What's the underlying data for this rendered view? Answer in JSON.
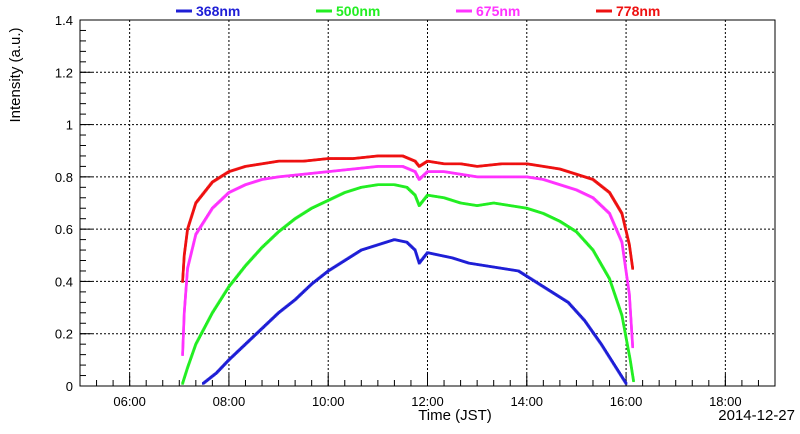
{
  "chart_data": {
    "type": "scatter",
    "title": "",
    "xlabel": "Time (JST)",
    "ylabel": "Intensity (a.u.)",
    "date_label": "2014-12-27",
    "xlim": [
      "05:00",
      "19:00"
    ],
    "ylim": [
      0,
      1.4
    ],
    "x_ticks": [
      "06:00",
      "08:00",
      "10:00",
      "12:00",
      "14:00",
      "16:00",
      "18:00"
    ],
    "y_ticks": [
      "0",
      "0.2",
      "0.4",
      "0.6",
      "0.8",
      "1",
      "1.2",
      "1.4"
    ],
    "grid": true,
    "legend_position": "top",
    "series": [
      {
        "name": "368nm",
        "color": "#1f1fd6",
        "points": [
          [
            "07:29",
            0.01
          ],
          [
            "07:45",
            0.05
          ],
          [
            "08:00",
            0.1
          ],
          [
            "08:20",
            0.16
          ],
          [
            "08:40",
            0.22
          ],
          [
            "09:00",
            0.28
          ],
          [
            "09:20",
            0.33
          ],
          [
            "09:40",
            0.39
          ],
          [
            "10:00",
            0.44
          ],
          [
            "10:20",
            0.48
          ],
          [
            "10:40",
            0.52
          ],
          [
            "11:00",
            0.54
          ],
          [
            "11:20",
            0.56
          ],
          [
            "11:35",
            0.55
          ],
          [
            "11:45",
            0.52
          ],
          [
            "11:50",
            0.47
          ],
          [
            "12:00",
            0.51
          ],
          [
            "12:15",
            0.5
          ],
          [
            "12:30",
            0.49
          ],
          [
            "12:50",
            0.47
          ],
          [
            "13:10",
            0.46
          ],
          [
            "13:30",
            0.45
          ],
          [
            "13:50",
            0.44
          ],
          [
            "14:10",
            0.4
          ],
          [
            "14:30",
            0.36
          ],
          [
            "14:50",
            0.32
          ],
          [
            "15:10",
            0.25
          ],
          [
            "15:30",
            0.16
          ],
          [
            "15:50",
            0.06
          ],
          [
            "16:00",
            0.01
          ]
        ]
      },
      {
        "name": "500nm",
        "color": "#22ee22",
        "points": [
          [
            "07:04",
            0.01
          ],
          [
            "07:10",
            0.07
          ],
          [
            "07:20",
            0.16
          ],
          [
            "07:40",
            0.28
          ],
          [
            "08:00",
            0.38
          ],
          [
            "08:20",
            0.46
          ],
          [
            "08:40",
            0.53
          ],
          [
            "09:00",
            0.59
          ],
          [
            "09:20",
            0.64
          ],
          [
            "09:40",
            0.68
          ],
          [
            "10:00",
            0.71
          ],
          [
            "10:20",
            0.74
          ],
          [
            "10:40",
            0.76
          ],
          [
            "11:00",
            0.77
          ],
          [
            "11:20",
            0.77
          ],
          [
            "11:35",
            0.76
          ],
          [
            "11:45",
            0.73
          ],
          [
            "11:50",
            0.69
          ],
          [
            "12:00",
            0.73
          ],
          [
            "12:20",
            0.72
          ],
          [
            "12:40",
            0.7
          ],
          [
            "13:00",
            0.69
          ],
          [
            "13:20",
            0.7
          ],
          [
            "13:40",
            0.69
          ],
          [
            "14:00",
            0.68
          ],
          [
            "14:20",
            0.66
          ],
          [
            "14:40",
            0.63
          ],
          [
            "15:00",
            0.59
          ],
          [
            "15:20",
            0.52
          ],
          [
            "15:40",
            0.41
          ],
          [
            "15:55",
            0.27
          ],
          [
            "16:05",
            0.1
          ],
          [
            "16:09",
            0.02
          ]
        ]
      },
      {
        "name": "675nm",
        "color": "#ff33ff",
        "points": [
          [
            "07:04",
            0.12
          ],
          [
            "07:06",
            0.28
          ],
          [
            "07:10",
            0.45
          ],
          [
            "07:20",
            0.58
          ],
          [
            "07:40",
            0.68
          ],
          [
            "08:00",
            0.74
          ],
          [
            "08:20",
            0.77
          ],
          [
            "08:40",
            0.79
          ],
          [
            "09:00",
            0.8
          ],
          [
            "09:30",
            0.81
          ],
          [
            "10:00",
            0.82
          ],
          [
            "10:30",
            0.83
          ],
          [
            "11:00",
            0.84
          ],
          [
            "11:30",
            0.84
          ],
          [
            "11:45",
            0.82
          ],
          [
            "11:50",
            0.79
          ],
          [
            "12:00",
            0.82
          ],
          [
            "12:20",
            0.82
          ],
          [
            "12:40",
            0.81
          ],
          [
            "13:00",
            0.8
          ],
          [
            "13:30",
            0.8
          ],
          [
            "14:00",
            0.8
          ],
          [
            "14:20",
            0.79
          ],
          [
            "14:40",
            0.77
          ],
          [
            "15:00",
            0.75
          ],
          [
            "15:20",
            0.72
          ],
          [
            "15:40",
            0.66
          ],
          [
            "15:55",
            0.55
          ],
          [
            "16:04",
            0.35
          ],
          [
            "16:08",
            0.15
          ]
        ]
      },
      {
        "name": "778nm",
        "color": "#ee1111",
        "points": [
          [
            "07:04",
            0.4
          ],
          [
            "07:06",
            0.5
          ],
          [
            "07:10",
            0.6
          ],
          [
            "07:20",
            0.7
          ],
          [
            "07:40",
            0.78
          ],
          [
            "08:00",
            0.82
          ],
          [
            "08:20",
            0.84
          ],
          [
            "08:40",
            0.85
          ],
          [
            "09:00",
            0.86
          ],
          [
            "09:30",
            0.86
          ],
          [
            "10:00",
            0.87
          ],
          [
            "10:30",
            0.87
          ],
          [
            "11:00",
            0.88
          ],
          [
            "11:30",
            0.88
          ],
          [
            "11:45",
            0.86
          ],
          [
            "11:50",
            0.84
          ],
          [
            "12:00",
            0.86
          ],
          [
            "12:20",
            0.85
          ],
          [
            "12:40",
            0.85
          ],
          [
            "13:00",
            0.84
          ],
          [
            "13:30",
            0.85
          ],
          [
            "14:00",
            0.85
          ],
          [
            "14:20",
            0.84
          ],
          [
            "14:40",
            0.83
          ],
          [
            "15:00",
            0.81
          ],
          [
            "15:20",
            0.79
          ],
          [
            "15:40",
            0.74
          ],
          [
            "15:55",
            0.66
          ],
          [
            "16:04",
            0.54
          ],
          [
            "16:08",
            0.45
          ]
        ]
      }
    ]
  }
}
